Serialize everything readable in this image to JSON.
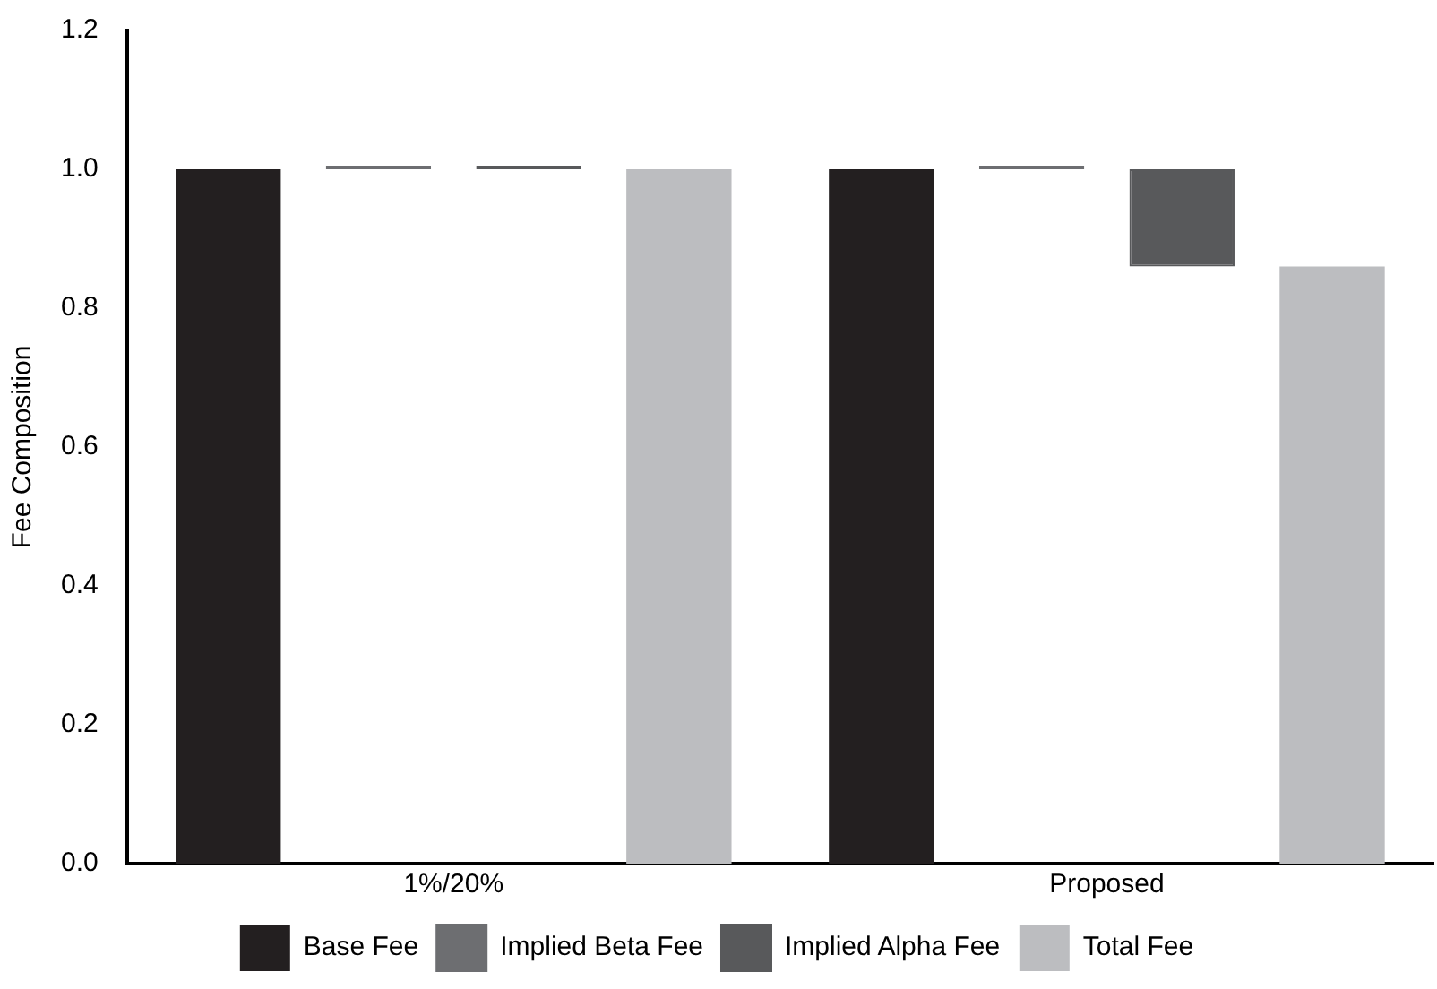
{
  "chart_data": {
    "type": "bar",
    "categories": [
      "1%/20%",
      "Proposed"
    ],
    "ylabel": "Fee Composition",
    "ylim": [
      0,
      1.2
    ],
    "yticks": [
      {
        "value": 0,
        "label": "0.0"
      },
      0.2,
      0.4,
      0.6,
      0.8,
      {
        "value": 1,
        "label": "1.0"
      },
      1.2
    ],
    "grid": false,
    "legend": "bottom",
    "series": [
      {
        "name": "Base Fee",
        "color": "#231f20",
        "values": [
          1.0,
          1.0
        ]
      },
      {
        "name": "Implied Beta Fee",
        "color": "#6d6e71",
        "values": [
          0,
          0
        ],
        "base": [
          1.0,
          1.0
        ]
      },
      {
        "name": "Implied Alpha Fee",
        "color": "#58595b",
        "values": [
          0,
          -0.14
        ],
        "base": [
          1.0,
          1.0
        ]
      },
      {
        "name": "Total Fee",
        "color": "#bcbdc0",
        "values": [
          1.0,
          0.86
        ]
      }
    ]
  }
}
